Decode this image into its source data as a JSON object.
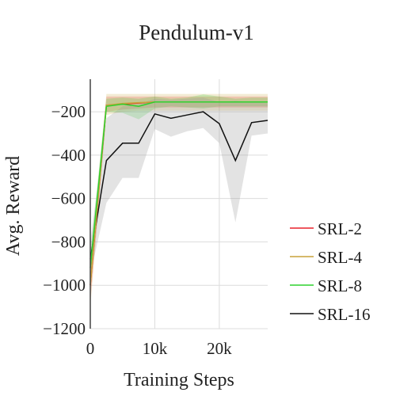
{
  "chart_data": {
    "type": "line",
    "title": "Pendulum-v1",
    "xlabel": "Training Steps",
    "ylabel": "Avg. Reward",
    "xlim": [
      0,
      27500
    ],
    "ylim": [
      -1200,
      -50
    ],
    "x_ticks": [
      0,
      10000,
      20000
    ],
    "x_tick_labels": [
      "0",
      "10k",
      "20k"
    ],
    "y_ticks": [
      -200,
      -400,
      -600,
      -800,
      -1000,
      -1200
    ],
    "y_tick_labels": [
      "−200",
      "−400",
      "−600",
      "−800",
      "−1000",
      "−1200"
    ],
    "grid": true,
    "legend_position": "right",
    "series": [
      {
        "name": "SRL-2",
        "color": "#e8202a",
        "x": [
          0,
          2500,
          5000,
          7500,
          10000,
          12500,
          15000,
          17500,
          20000,
          22500,
          25000,
          27500
        ],
        "y": [
          -1000,
          -170,
          -165,
          -160,
          -155,
          -155,
          -155,
          -155,
          -155,
          -155,
          -155,
          -155
        ],
        "upper": [
          -900,
          -130,
          -130,
          -130,
          -130,
          -130,
          -130,
          -130,
          -130,
          -130,
          -130,
          -130
        ],
        "lower": [
          -1080,
          -200,
          -190,
          -185,
          -180,
          -180,
          -180,
          -180,
          -180,
          -180,
          -180,
          -180
        ]
      },
      {
        "name": "SRL-4",
        "color": "#c9a23a",
        "x": [
          0,
          2500,
          5000,
          7500,
          10000,
          12500,
          15000,
          17500,
          20000,
          22500,
          25000,
          27500
        ],
        "y": [
          -1000,
          -170,
          -162,
          -158,
          -155,
          -155,
          -155,
          -155,
          -155,
          -155,
          -155,
          -155
        ],
        "upper": [
          -880,
          -118,
          -118,
          -118,
          -118,
          -118,
          -118,
          -118,
          -118,
          -118,
          -118,
          -118
        ],
        "lower": [
          -1100,
          -215,
          -200,
          -195,
          -195,
          -195,
          -195,
          -195,
          -195,
          -195,
          -195,
          -195
        ]
      },
      {
        "name": "SRL-8",
        "color": "#2ed12e",
        "x": [
          0,
          2500,
          5000,
          7500,
          10000,
          12500,
          15000,
          17500,
          20000,
          22500,
          25000,
          27500
        ],
        "y": [
          -920,
          -175,
          -165,
          -175,
          -155,
          -155,
          -155,
          -155,
          -155,
          -155,
          -155,
          -155
        ],
        "upper": [
          -850,
          -140,
          -135,
          -140,
          -130,
          -140,
          -135,
          -120,
          -130,
          -140,
          -135,
          -135
        ],
        "lower": [
          -1000,
          -200,
          -205,
          -235,
          -185,
          -175,
          -180,
          -185,
          -175,
          -175,
          -175,
          -175
        ]
      },
      {
        "name": "SRL-16",
        "color": "#111111",
        "x": [
          0,
          2500,
          5000,
          7500,
          10000,
          12500,
          15000,
          17500,
          20000,
          22500,
          25000,
          27500
        ],
        "y": [
          -880,
          -425,
          -345,
          -345,
          -210,
          -230,
          -215,
          -200,
          -255,
          -425,
          -250,
          -240
        ],
        "upper": [
          -800,
          -230,
          -175,
          -165,
          -140,
          -145,
          -140,
          -135,
          -155,
          -150,
          -155,
          -160
        ],
        "lower": [
          -950,
          -620,
          -505,
          -505,
          -280,
          -315,
          -290,
          -275,
          -345,
          -710,
          -310,
          -300
        ]
      }
    ]
  }
}
